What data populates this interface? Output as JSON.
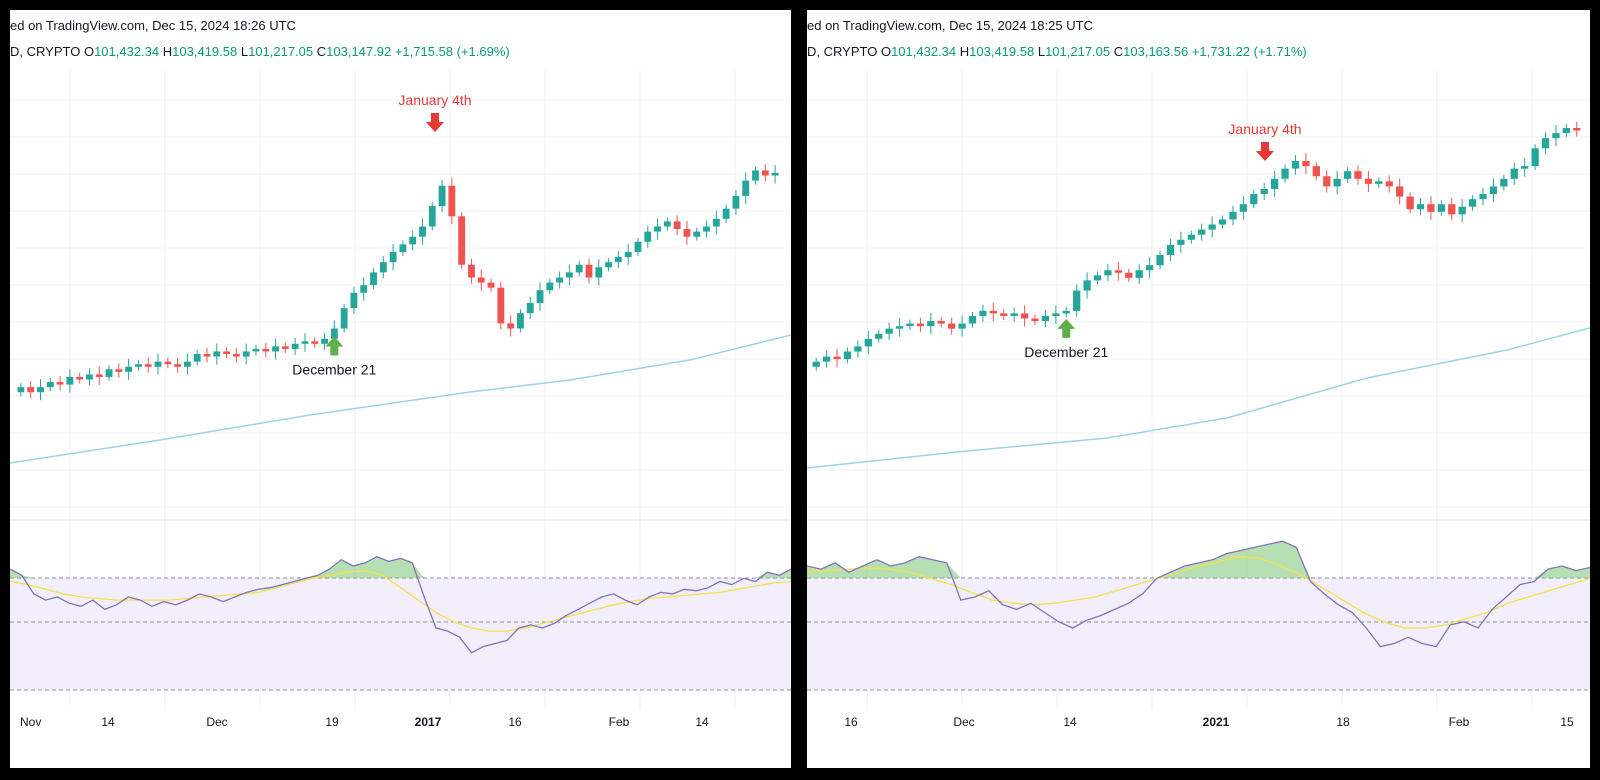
{
  "colors": {
    "up": "#26a69a",
    "down": "#ef5350",
    "ma_line": "#9cd3e4",
    "rsi_line": "#7e75b8",
    "rsi_signal": "#f3e04a",
    "rsi_band_fill": "#f2eefb",
    "rsi_overbought_fill": "#7cc576",
    "annotation_red": "#e53935",
    "annotation_green": "#5fb04a",
    "ohlc_text": "#089981"
  },
  "panels": [
    {
      "source_text": "ed on TradingView.com, Dec 15, 2024 18:26 UTC",
      "symbol_label": "D, CRYPTO",
      "ohlc": {
        "o_label": "O",
        "o": "101,432.34",
        "h_label": "H",
        "h": "103,419.58",
        "l_label": "L",
        "l": "101,217.05",
        "c_label": "C",
        "c": "103,147.92",
        "change": "+1,715.58 (+1.69%)"
      },
      "x_labels": [
        "Nov",
        "14",
        "Dec",
        "19",
        "2017",
        "16",
        "Feb",
        "14"
      ],
      "annotations": {
        "top": "January 4th",
        "bottom": "December 21"
      }
    },
    {
      "source_text": "ed on TradingView.com, Dec 15, 2024 18:25 UTC",
      "symbol_label": "D, CRYPTO",
      "ohlc": {
        "o_label": "O",
        "o": "101,432.34",
        "h_label": "H",
        "h": "103,419.58",
        "l_label": "L",
        "l": "101,217.05",
        "c_label": "C",
        "c": "103,163.56",
        "change": "+1,731.22 (+1.71%)"
      },
      "x_labels": [
        "16",
        "Dec",
        "14",
        "2021",
        "18",
        "Feb",
        "15"
      ],
      "annotations": {
        "top": "January 4th",
        "bottom": "December 21"
      }
    }
  ],
  "chart_data": [
    {
      "type": "candlestick",
      "title": "",
      "x_tick_labels": [
        "Nov",
        "14",
        "Dec",
        "19",
        "2017",
        "16",
        "Feb",
        "14"
      ],
      "annotations": [
        {
          "text": "January 4th",
          "marker": "down-arrow",
          "at": "peak candle"
        },
        {
          "text": "December 21",
          "marker": "up-arrow",
          "at": "breakout candle"
        }
      ],
      "series": [
        {
          "name": "",
          "kind": "moving-average",
          "trend": "rising"
        },
        {
          "name": "",
          "kind": "rsi",
          "levels": [
            70,
            50,
            30
          ]
        }
      ],
      "candles_close_relative": [
        0.07,
        0.05,
        0.07,
        0.09,
        0.08,
        0.11,
        0.1,
        0.12,
        0.11,
        0.14,
        0.13,
        0.15,
        0.16,
        0.15,
        0.17,
        0.16,
        0.15,
        0.17,
        0.2,
        0.19,
        0.21,
        0.2,
        0.19,
        0.21,
        0.22,
        0.21,
        0.23,
        0.22,
        0.24,
        0.25,
        0.24,
        0.26,
        0.3,
        0.38,
        0.44,
        0.47,
        0.52,
        0.56,
        0.6,
        0.63,
        0.66,
        0.7,
        0.78,
        0.86,
        0.74,
        0.55,
        0.5,
        0.48,
        0.46,
        0.32,
        0.3,
        0.36,
        0.4,
        0.45,
        0.48,
        0.5,
        0.52,
        0.55,
        0.5,
        0.54,
        0.56,
        0.58,
        0.6,
        0.64,
        0.68,
        0.7,
        0.72,
        0.69,
        0.66,
        0.68,
        0.7,
        0.73,
        0.77,
        0.82,
        0.88,
        0.92,
        0.9,
        0.91
      ],
      "rsi": [
        0.78,
        0.74,
        0.62,
        0.58,
        0.6,
        0.56,
        0.54,
        0.58,
        0.52,
        0.55,
        0.6,
        0.58,
        0.54,
        0.57,
        0.55,
        0.58,
        0.62,
        0.6,
        0.57,
        0.6,
        0.63,
        0.65,
        0.66,
        0.68,
        0.7,
        0.72,
        0.74,
        0.78,
        0.84,
        0.8,
        0.82,
        0.86,
        0.83,
        0.85,
        0.82,
        0.6,
        0.4,
        0.38,
        0.34,
        0.24,
        0.28,
        0.3,
        0.32,
        0.4,
        0.42,
        0.4,
        0.43,
        0.48,
        0.52,
        0.56,
        0.6,
        0.62,
        0.58,
        0.55,
        0.6,
        0.63,
        0.62,
        0.65,
        0.64,
        0.66,
        0.7,
        0.68,
        0.72,
        0.7,
        0.76,
        0.74,
        0.78
      ],
      "rsi_signal": [
        0.7,
        0.68,
        0.65,
        0.62,
        0.6,
        0.59,
        0.58,
        0.58,
        0.58,
        0.58,
        0.59,
        0.6,
        0.61,
        0.62,
        0.63,
        0.66,
        0.69,
        0.72,
        0.74,
        0.76,
        0.77,
        0.74,
        0.66,
        0.58,
        0.5,
        0.44,
        0.4,
        0.38,
        0.38,
        0.4,
        0.43,
        0.46,
        0.49,
        0.52,
        0.55,
        0.57,
        0.59,
        0.6,
        0.61,
        0.62,
        0.63,
        0.65,
        0.67,
        0.69,
        0.7
      ]
    },
    {
      "type": "candlestick",
      "title": "",
      "x_tick_labels": [
        "16",
        "Dec",
        "14",
        "2021",
        "18",
        "Feb",
        "15"
      ],
      "annotations": [
        {
          "text": "January 4th",
          "marker": "down-arrow",
          "at": "peak candle"
        },
        {
          "text": "December 21",
          "marker": "up-arrow",
          "at": "breakout candle"
        }
      ],
      "series": [
        {
          "name": "",
          "kind": "moving-average",
          "trend": "rising"
        },
        {
          "name": "",
          "kind": "rsi",
          "levels": [
            70,
            50,
            30
          ]
        }
      ],
      "candles_close_relative": [
        0.08,
        0.1,
        0.09,
        0.12,
        0.14,
        0.17,
        0.19,
        0.21,
        0.22,
        0.23,
        0.22,
        0.24,
        0.23,
        0.21,
        0.23,
        0.26,
        0.28,
        0.27,
        0.26,
        0.27,
        0.25,
        0.24,
        0.26,
        0.27,
        0.28,
        0.36,
        0.4,
        0.42,
        0.44,
        0.43,
        0.41,
        0.44,
        0.46,
        0.5,
        0.54,
        0.56,
        0.58,
        0.6,
        0.62,
        0.64,
        0.67,
        0.7,
        0.74,
        0.76,
        0.8,
        0.84,
        0.87,
        0.85,
        0.81,
        0.77,
        0.8,
        0.83,
        0.8,
        0.78,
        0.79,
        0.77,
        0.73,
        0.68,
        0.7,
        0.67,
        0.7,
        0.66,
        0.69,
        0.72,
        0.74,
        0.77,
        0.8,
        0.84,
        0.85,
        0.92,
        0.96,
        0.98,
        1.0,
        0.99
      ],
      "rsi": [
        0.8,
        0.78,
        0.82,
        0.76,
        0.8,
        0.84,
        0.8,
        0.82,
        0.86,
        0.84,
        0.82,
        0.58,
        0.6,
        0.64,
        0.55,
        0.52,
        0.56,
        0.5,
        0.44,
        0.4,
        0.45,
        0.48,
        0.52,
        0.56,
        0.62,
        0.72,
        0.76,
        0.8,
        0.82,
        0.84,
        0.88,
        0.9,
        0.92,
        0.94,
        0.96,
        0.92,
        0.7,
        0.62,
        0.55,
        0.5,
        0.4,
        0.28,
        0.3,
        0.34,
        0.3,
        0.28,
        0.42,
        0.44,
        0.4,
        0.52,
        0.6,
        0.68,
        0.7,
        0.78,
        0.8,
        0.77,
        0.79
      ],
      "rsi_signal": [
        0.76,
        0.77,
        0.78,
        0.79,
        0.78,
        0.76,
        0.72,
        0.68,
        0.63,
        0.58,
        0.56,
        0.55,
        0.56,
        0.58,
        0.6,
        0.64,
        0.68,
        0.72,
        0.76,
        0.8,
        0.83,
        0.86,
        0.85,
        0.8,
        0.74,
        0.66,
        0.58,
        0.5,
        0.44,
        0.4,
        0.4,
        0.42,
        0.46,
        0.5,
        0.56,
        0.6,
        0.64,
        0.68,
        0.72
      ]
    }
  ]
}
